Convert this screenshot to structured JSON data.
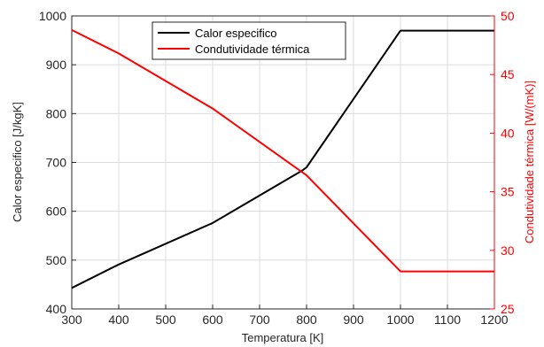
{
  "chart_data": {
    "type": "line",
    "xlabel": "Temperatura [K]",
    "ylabel_left": "Calor especifico [J/kgK]",
    "ylabel_right": "Condutividade térmica [W/(mK)]",
    "xlim": [
      300,
      1200
    ],
    "ylim_left": [
      400,
      1000
    ],
    "ylim_right": [
      25,
      50
    ],
    "x_ticks": [
      "300",
      "400",
      "500",
      "600",
      "700",
      "800",
      "900",
      "1000",
      "1100",
      "1200"
    ],
    "y_ticks_left": [
      "400",
      "500",
      "600",
      "700",
      "800",
      "900",
      "1000"
    ],
    "y_ticks_right": [
      "25",
      "30",
      "35",
      "40",
      "45",
      "50"
    ],
    "grid": true,
    "legend_position": "top-center",
    "series": [
      {
        "name": "Calor especifico",
        "axis": "left",
        "color": "#000000",
        "x": [
          300,
          400,
          600,
          790,
          800,
          1000,
          1200
        ],
        "y": [
          443,
          491,
          576,
          683,
          690,
          970,
          970
        ]
      },
      {
        "name": "Condutividade térmica",
        "axis": "right",
        "color": "#ff0000",
        "x": [
          300,
          400,
          600,
          800,
          1000,
          1200
        ],
        "y": [
          48.8,
          46.8,
          42.1,
          36.4,
          28.2,
          28.2
        ]
      }
    ]
  }
}
